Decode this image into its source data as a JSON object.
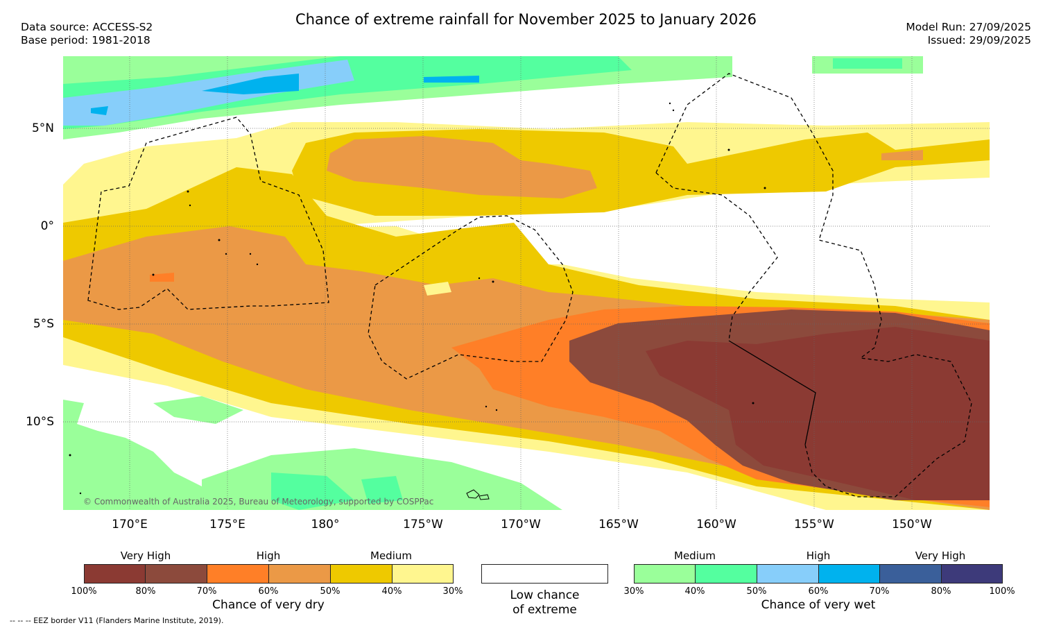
{
  "header": {
    "title": "Chance of extreme rainfall for November 2025 to January 2026",
    "data_source": "Data source: ACCESS-S2",
    "base_period": "Base period: 1981-2018",
    "model_run": "Model Run: 27/09/2025",
    "issued": "Issued: 29/09/2025"
  },
  "map": {
    "lat_labels": [
      "5°N",
      "0°",
      "5°S",
      "10°S"
    ],
    "lon_labels": [
      "170°E",
      "175°E",
      "180°",
      "175°W",
      "170°W",
      "165°W",
      "160°W",
      "155°W",
      "150°W"
    ],
    "credit": "© Commonwealth of Australia 2025, Bureau of Meteorology, supported by COSPPac"
  },
  "legend_dry": {
    "categories": [
      "Very High",
      "High",
      "Medium"
    ],
    "ticks": [
      "100%",
      "80%",
      "70%",
      "60%",
      "50%",
      "40%",
      "30%"
    ],
    "caption": "Chance of very dry",
    "colors": [
      "#8b3a33",
      "#8c4a3c",
      "#ff7f27",
      "#eb9946",
      "#eec900",
      "#fff68f"
    ]
  },
  "legend_low": {
    "line1": "Low chance",
    "line2": "of extreme"
  },
  "legend_wet": {
    "categories": [
      "Medium",
      "High",
      "Very High"
    ],
    "ticks": [
      "30%",
      "40%",
      "50%",
      "60%",
      "70%",
      "80%",
      "100%"
    ],
    "caption": "Chance of very wet",
    "colors": [
      "#9aff9a",
      "#54ff9f",
      "#87cefa",
      "#00b2ee",
      "#3a5f9a",
      "#3d3a7a"
    ]
  },
  "footer": "--  --  -- EEZ border V11 (Flanders Marine Institute, 2019)."
}
